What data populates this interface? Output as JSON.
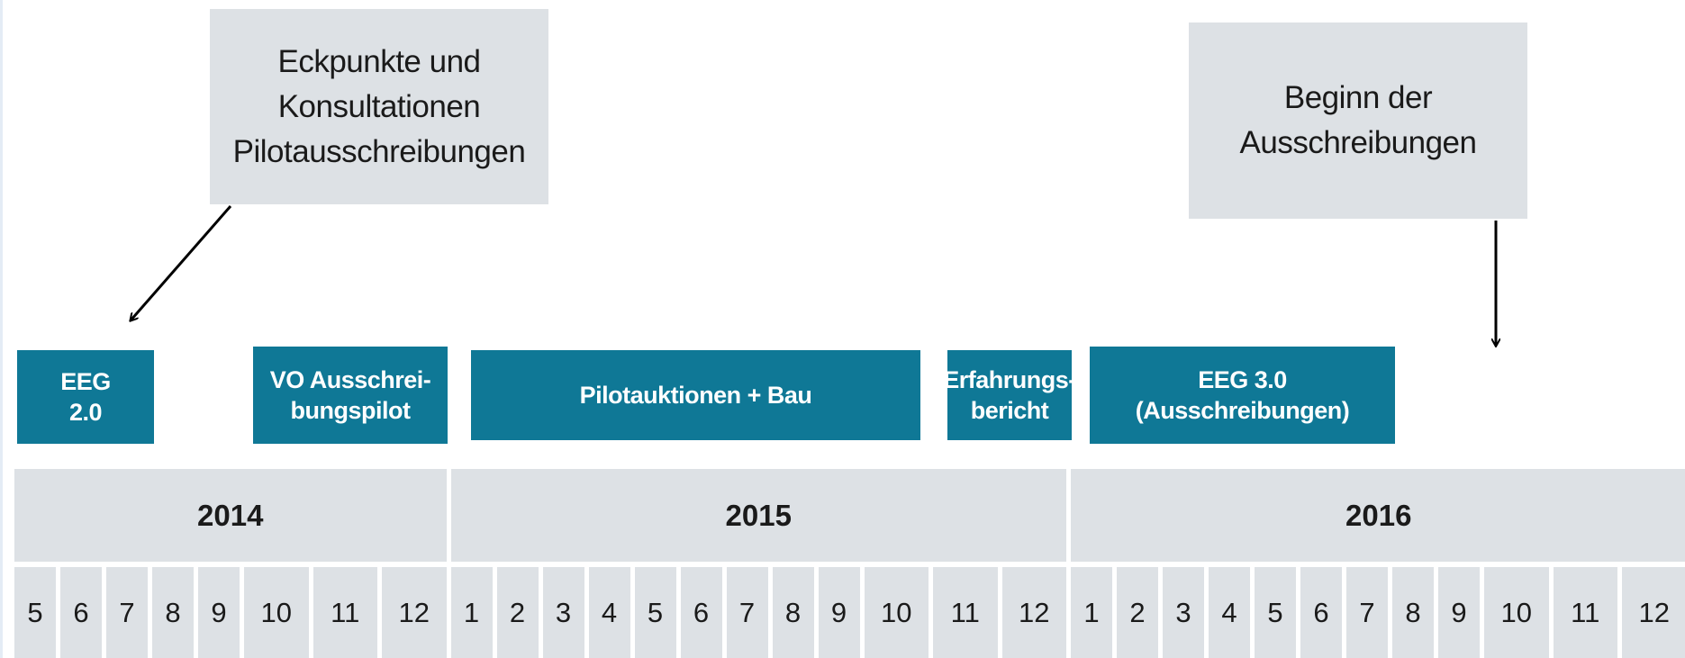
{
  "callouts": [
    {
      "lines": [
        "Eckpunkte und",
        "Konsultationen",
        "Pilotausschreibungen"
      ]
    },
    {
      "lines": [
        "Beginn der",
        "Ausschreibungen"
      ]
    }
  ],
  "phases": [
    {
      "lines": [
        "EEG",
        "2.0"
      ]
    },
    {
      "lines": [
        "VO Ausschrei-",
        "bungspilot"
      ]
    },
    {
      "lines": [
        "Pilotauktionen + Bau"
      ]
    },
    {
      "lines": [
        "Erfahrungs-",
        "bericht"
      ]
    },
    {
      "lines": [
        "EEG 3.0",
        "(Ausschreibungen)"
      ]
    }
  ],
  "years": [
    {
      "label": "2014",
      "months": [
        "5",
        "6",
        "7",
        "8",
        "9",
        "10",
        "11",
        "12"
      ]
    },
    {
      "label": "2015",
      "months": [
        "1",
        "2",
        "3",
        "4",
        "5",
        "6",
        "7",
        "8",
        "9",
        "10",
        "11",
        "12"
      ]
    },
    {
      "label": "2016",
      "months": [
        "1",
        "2",
        "3",
        "4",
        "5",
        "6",
        "7",
        "8",
        "9",
        "10",
        "11",
        "12"
      ]
    }
  ]
}
